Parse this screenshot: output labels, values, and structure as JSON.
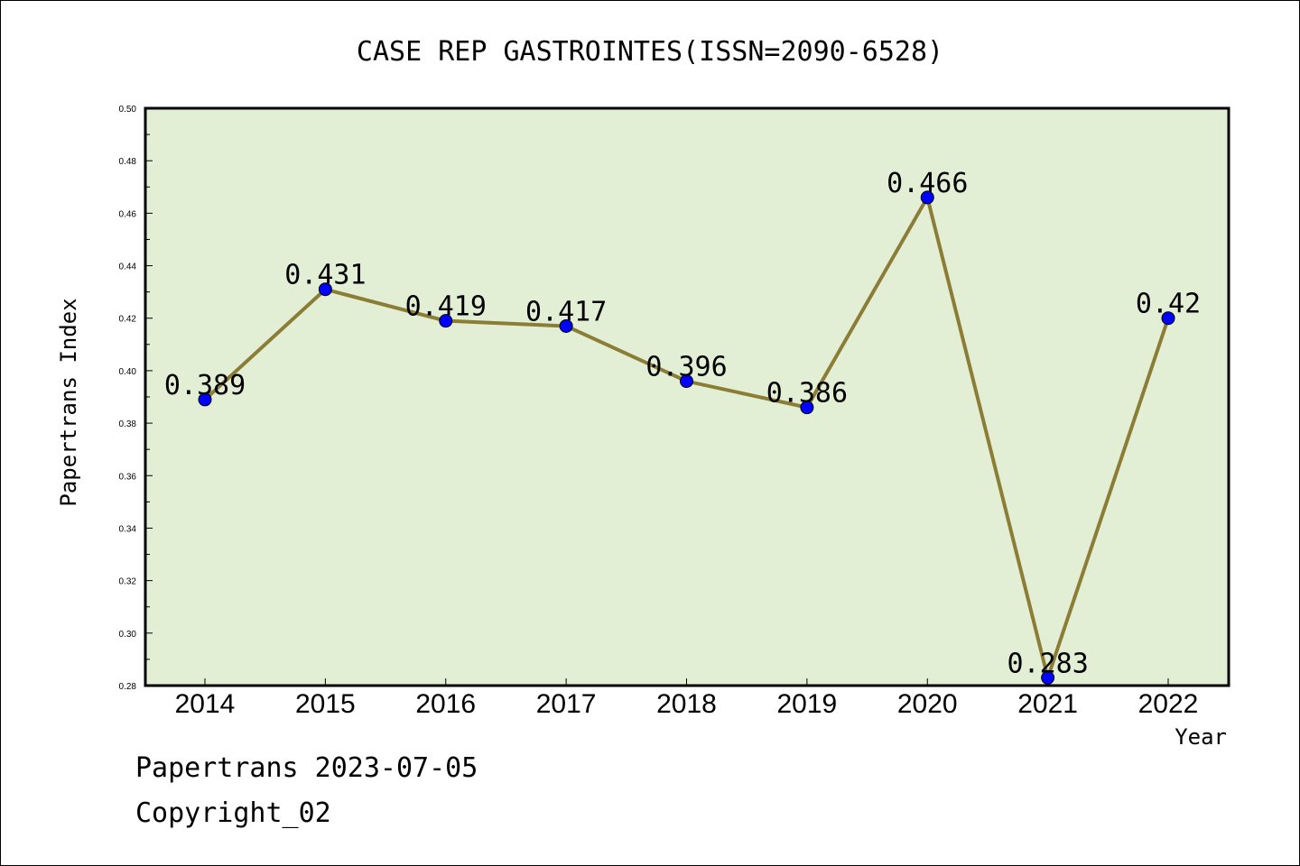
{
  "chart_data": {
    "type": "line",
    "title": "CASE REP GASTROINTES(ISSN=2090-6528)",
    "xlabel": "Year",
    "ylabel": "Papertrans Index",
    "categories": [
      "2014",
      "2015",
      "2016",
      "2017",
      "2018",
      "2019",
      "2020",
      "2021",
      "2022"
    ],
    "series": [
      {
        "values": [
          0.389,
          0.431,
          0.419,
          0.417,
          0.396,
          0.386,
          0.466,
          0.283,
          0.42
        ],
        "labels": [
          "0.389",
          "0.431",
          "0.419",
          "0.417",
          "0.396",
          "0.386",
          "0.466",
          "0.283",
          "0.42"
        ]
      }
    ],
    "ylim": [
      0.28,
      0.5
    ],
    "yticks": [
      "0.28",
      "0.30",
      "0.32",
      "0.34",
      "0.36",
      "0.38",
      "0.40",
      "0.42",
      "0.44",
      "0.46",
      "0.48",
      "0.50"
    ],
    "grid": false,
    "legend": "none",
    "colors": {
      "plot_background": "#e2efd5",
      "line": "#8b7d35",
      "marker": "#0000ff"
    }
  },
  "footer": {
    "line1": "Papertrans 2023-07-05",
    "line2": "Copyright_02"
  }
}
